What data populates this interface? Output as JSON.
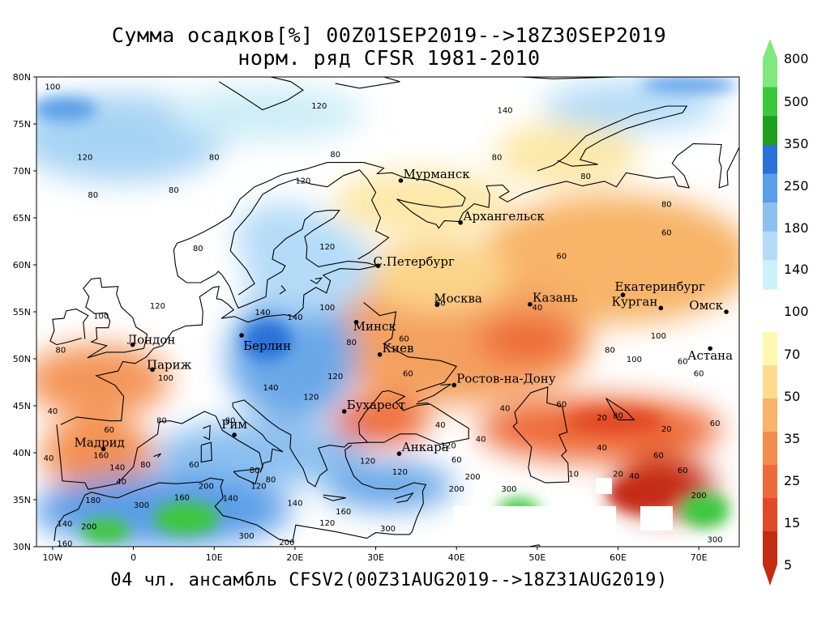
{
  "title": {
    "line1": "Сумма осадков[%] 00Z01SEP2019-->18Z30SEP2019",
    "line2": "норм. ряд CFSR 1981-2010"
  },
  "footer": "04 чл. ансамбль CFSV2(00Z31AUG2019-->18Z31AUG2019)",
  "map": {
    "lon_range": [
      -12,
      75
    ],
    "lat_range": [
      30,
      80
    ],
    "lat_ticks": [
      "30N",
      "35N",
      "40N",
      "45N",
      "50N",
      "55N",
      "60N",
      "65N",
      "70N",
      "75N",
      "80N"
    ],
    "lon_ticks": [
      "10W",
      "0",
      "10E",
      "20E",
      "30E",
      "40E",
      "50E",
      "60E",
      "70E"
    ],
    "cities": [
      {
        "name": "Мурманск",
        "lon": 33.1,
        "lat": 68.97
      },
      {
        "name": "Архангельск",
        "lon": 40.5,
        "lat": 64.5
      },
      {
        "name": "С.Петербург",
        "lon": 30.3,
        "lat": 59.9
      },
      {
        "name": "Москва",
        "lon": 37.6,
        "lat": 55.75
      },
      {
        "name": "Казань",
        "lon": 49.1,
        "lat": 55.8
      },
      {
        "name": "Екатеринбург",
        "lon": 60.6,
        "lat": 56.8
      },
      {
        "name": "Курган",
        "lon": 65.3,
        "lat": 55.4
      },
      {
        "name": "Омск",
        "lon": 73.4,
        "lat": 55.0
      },
      {
        "name": "Астана",
        "lon": 71.4,
        "lat": 51.1
      },
      {
        "name": "Минск",
        "lon": 27.6,
        "lat": 53.9
      },
      {
        "name": "Берлин",
        "lon": 13.4,
        "lat": 52.5
      },
      {
        "name": "Лондон",
        "lon": -0.1,
        "lat": 51.5
      },
      {
        "name": "Париж",
        "lon": 2.35,
        "lat": 48.85
      },
      {
        "name": "Киев",
        "lon": 30.5,
        "lat": 50.45
      },
      {
        "name": "Ростов-на-Дону",
        "lon": 39.7,
        "lat": 47.2
      },
      {
        "name": "Бухарест",
        "lon": 26.1,
        "lat": 44.4
      },
      {
        "name": "Рим",
        "lon": 12.5,
        "lat": 41.9
      },
      {
        "name": "Мадрид",
        "lon": -3.7,
        "lat": 40.4
      },
      {
        "name": "Анкара",
        "lon": 32.9,
        "lat": 39.9
      }
    ],
    "contour_labels": [
      {
        "t": "100",
        "lon": -10,
        "lat": 79
      },
      {
        "t": "120",
        "lon": 23,
        "lat": 77
      },
      {
        "t": "140",
        "lon": 46,
        "lat": 76.5
      },
      {
        "t": "120",
        "lon": -6,
        "lat": 71.5
      },
      {
        "t": "80",
        "lon": 10,
        "lat": 71.5
      },
      {
        "t": "80",
        "lon": 25,
        "lat": 71.8
      },
      {
        "t": "80",
        "lon": 45,
        "lat": 71.5
      },
      {
        "t": "80",
        "lon": -5,
        "lat": 67.5
      },
      {
        "t": "80",
        "lon": 5,
        "lat": 68
      },
      {
        "t": "120",
        "lon": 21,
        "lat": 69
      },
      {
        "t": "80",
        "lon": 56,
        "lat": 69.5
      },
      {
        "t": "80",
        "lon": 66,
        "lat": 66.5
      },
      {
        "t": "60",
        "lon": 53,
        "lat": 61
      },
      {
        "t": "60",
        "lon": 66,
        "lat": 63.5
      },
      {
        "t": "80",
        "lon": 8,
        "lat": 61.8
      },
      {
        "t": "120",
        "lon": 24,
        "lat": 62
      },
      {
        "t": "60",
        "lon": 38,
        "lat": 56
      },
      {
        "t": "40",
        "lon": 50,
        "lat": 55.5
      },
      {
        "t": "100",
        "lon": 24,
        "lat": 55.5
      },
      {
        "t": "120",
        "lon": 3,
        "lat": 55.7
      },
      {
        "t": "100",
        "lon": -4,
        "lat": 54.6
      },
      {
        "t": "140",
        "lon": 16,
        "lat": 55
      },
      {
        "t": "140",
        "lon": 20,
        "lat": 54.5
      },
      {
        "t": "80",
        "lon": 27,
        "lat": 51.8
      },
      {
        "t": "60",
        "lon": 33.5,
        "lat": 52.2
      },
      {
        "t": "80",
        "lon": -9,
        "lat": 51
      },
      {
        "t": "80",
        "lon": 59,
        "lat": 51
      },
      {
        "t": "100",
        "lon": 62,
        "lat": 50
      },
      {
        "t": "100",
        "lon": 65,
        "lat": 52.5
      },
      {
        "t": "60",
        "lon": 68,
        "lat": 49.8
      },
      {
        "t": "60",
        "lon": 70,
        "lat": 48.5
      },
      {
        "t": "60",
        "lon": 34,
        "lat": 48.5
      },
      {
        "t": "100",
        "lon": 4,
        "lat": 48
      },
      {
        "t": "120",
        "lon": 25,
        "lat": 48.2
      },
      {
        "t": "140",
        "lon": 17,
        "lat": 47
      },
      {
        "t": "120",
        "lon": 22,
        "lat": 46
      },
      {
        "t": "60",
        "lon": 53,
        "lat": 45.2
      },
      {
        "t": "40",
        "lon": 46,
        "lat": 44.8
      },
      {
        "t": "80",
        "lon": 60,
        "lat": 44
      },
      {
        "t": "20",
        "lon": 58,
        "lat": 43.8
      },
      {
        "t": "60",
        "lon": 72,
        "lat": 43.2
      },
      {
        "t": "60",
        "lon": -3,
        "lat": 42.5
      },
      {
        "t": "40",
        "lon": -10,
        "lat": 44.5
      },
      {
        "t": "80",
        "lon": 3.5,
        "lat": 43.5
      },
      {
        "t": "80",
        "lon": 12,
        "lat": 43.5
      },
      {
        "t": "40",
        "lon": 38,
        "lat": 43
      },
      {
        "t": "20",
        "lon": 66,
        "lat": 42.6
      },
      {
        "t": "40",
        "lon": 58,
        "lat": 40.6
      },
      {
        "t": "60",
        "lon": 65,
        "lat": 39.8
      },
      {
        "t": "40",
        "lon": 43,
        "lat": 41.5
      },
      {
        "t": "120",
        "lon": 39,
        "lat": 40.8
      },
      {
        "t": "40",
        "lon": -10.5,
        "lat": 39.5
      },
      {
        "t": "160",
        "lon": -4,
        "lat": 39.8
      },
      {
        "t": "80",
        "lon": 1.5,
        "lat": 38.8
      },
      {
        "t": "60",
        "lon": 7.5,
        "lat": 38.8
      },
      {
        "t": "140",
        "lon": -2,
        "lat": 38.5
      },
      {
        "t": "80",
        "lon": 15,
        "lat": 38.2
      },
      {
        "t": "120",
        "lon": 29,
        "lat": 39.2
      },
      {
        "t": "120",
        "lon": 33,
        "lat": 38
      },
      {
        "t": "40",
        "lon": -1.5,
        "lat": 37
      },
      {
        "t": "60",
        "lon": 40,
        "lat": 39.3
      },
      {
        "t": "80",
        "lon": 17,
        "lat": 37.2
      },
      {
        "t": "200",
        "lon": 42,
        "lat": 37.5
      },
      {
        "t": "10",
        "lon": 54.5,
        "lat": 37.8
      },
      {
        "t": "20",
        "lon": 60,
        "lat": 37.8
      },
      {
        "t": "40",
        "lon": 62,
        "lat": 37.6
      },
      {
        "t": "60",
        "lon": 68,
        "lat": 38.2
      },
      {
        "t": "120",
        "lon": 15.5,
        "lat": 36.5
      },
      {
        "t": "140",
        "lon": 12,
        "lat": 35.2
      },
      {
        "t": "160",
        "lon": 6,
        "lat": 35.3
      },
      {
        "t": "200",
        "lon": 9,
        "lat": 36.5
      },
      {
        "t": "200",
        "lon": 40,
        "lat": 36.2
      },
      {
        "t": "300",
        "lon": 46.5,
        "lat": 36.2
      },
      {
        "t": "200",
        "lon": 70,
        "lat": 35.5
      },
      {
        "t": "300",
        "lon": 1,
        "lat": 34.5
      },
      {
        "t": "180",
        "lon": -5,
        "lat": 35
      },
      {
        "t": "140",
        "lon": 20,
        "lat": 34.7
      },
      {
        "t": "160",
        "lon": 26,
        "lat": 33.8
      },
      {
        "t": "120",
        "lon": 24,
        "lat": 32.6
      },
      {
        "t": "140",
        "lon": -8.5,
        "lat": 32.5
      },
      {
        "t": "200",
        "lon": -5.5,
        "lat": 32.2
      },
      {
        "t": "300",
        "lon": 14,
        "lat": 31.2
      },
      {
        "t": "200",
        "lon": 19,
        "lat": 30.5
      },
      {
        "t": "300",
        "lon": 31.5,
        "lat": 32
      },
      {
        "t": "300",
        "lon": 72,
        "lat": 30.8
      },
      {
        "t": "160",
        "lon": -8.5,
        "lat": 30.4
      }
    ]
  },
  "colorbar": {
    "labels": [
      "800",
      "500",
      "350",
      "250",
      "180",
      "140",
      "100",
      "70",
      "50",
      "35",
      "25",
      "15",
      "5"
    ],
    "upper_colors": [
      "#7fe87f",
      "#3cc83c",
      "#1ea01e",
      "#2a72d8",
      "#5a9ee8",
      "#8cc0f0",
      "#b4dcf8",
      "#ccf2fa"
    ],
    "lower_colors": [
      "#fff8b0",
      "#fcdc8c",
      "#f8b468",
      "#f48c4c",
      "#ee6a38",
      "#e24a26",
      "#c42c12"
    ]
  }
}
